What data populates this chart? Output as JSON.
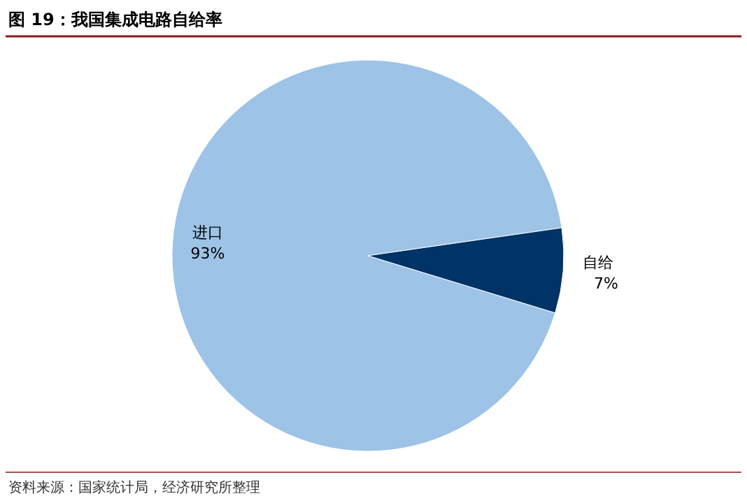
{
  "chart_data": {
    "type": "pie",
    "title": "图 19：我国集成电路自给率",
    "categories": [
      "进口",
      "自给"
    ],
    "values": [
      93,
      7
    ],
    "colors": [
      "#9dc3e6",
      "#003366"
    ],
    "value_labels": [
      "93%",
      "7%"
    ],
    "annotations": [
      "资料来源：国家统计局，经济研究所整理"
    ]
  }
}
